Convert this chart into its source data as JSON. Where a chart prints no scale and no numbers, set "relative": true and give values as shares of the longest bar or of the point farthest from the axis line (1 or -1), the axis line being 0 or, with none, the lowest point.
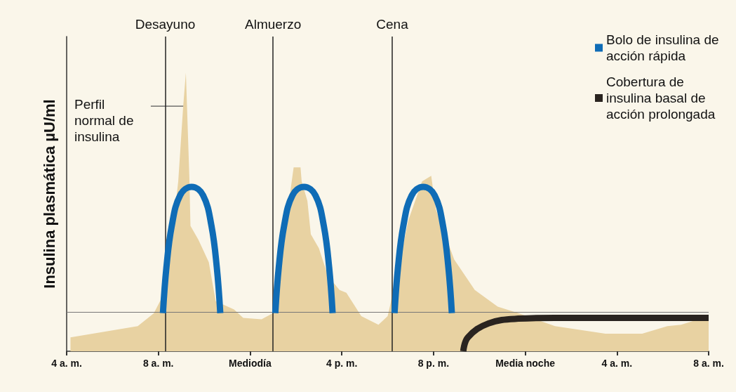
{
  "chart_data": {
    "type": "area",
    "relative": true,
    "ylabel": "Insulina plasmática µU/ml",
    "legend": "top right",
    "marker": "none",
    "xlim": [
      "--01-01T04:00",
      "--01-02T08:00"
    ],
    "xticks": [
      {
        "value": "--01-01T04:00",
        "label": "4 a. m."
      },
      {
        "value": "--01-01T08:00",
        "label": "8 a. m."
      },
      {
        "value": "--01-01T12:00",
        "label": "Mediodía"
      },
      {
        "value": "--01-01T16:00",
        "label": "4 p. m."
      },
      {
        "value": "--01-01T20:00",
        "label": "8 p. m."
      },
      {
        "value": "--01-02T00:00",
        "label": "Media noche"
      },
      {
        "value": "--01-02T04:00",
        "label": "4 a. m."
      },
      {
        "value": "--01-02T08:00",
        "label": "8 a. m."
      }
    ],
    "series": [
      {
        "type": "area",
        "color": "#e8d2a2",
        "x": [
          "--01-01T04:10",
          "--01-01T07:06",
          "--01-01T07:48",
          "--01-01T08:12",
          "--01-01T08:39",
          "--01-01T08:52",
          "--01-01T09:05",
          "--01-01T09:12",
          "--01-01T09:21",
          "--01-01T09:24",
          "--01-01T09:45",
          "--01-01T10:12",
          "--01-01T10:30",
          "--01-01T11:18",
          "--01-01T11:42",
          "--01-01T12:30",
          "--01-01T13:00",
          "--01-01T13:24",
          "--01-01T13:42",
          "--01-01T13:54",
          "--01-01T14:12",
          "--01-01T14:15",
          "--01-01T14:30",
          "--01-01T14:39",
          "--01-01T15:00",
          "--01-01T15:24",
          "--01-01T15:54",
          "--01-01T16:12",
          "--01-01T16:51",
          "--01-01T17:36",
          "--01-01T18:00",
          "--01-01T18:24",
          "--01-01T18:54",
          "--01-01T19:30",
          "--01-01T19:54",
          "--01-01T20:06",
          "--01-01T20:54",
          "--01-01T21:48",
          "--01-01T22:48",
          "--01-01T23:42",
          "--01-02T01:18",
          "--01-02T03:30",
          "--01-02T05:06",
          "--01-02T06:12",
          "--01-02T06:48",
          "--01-02T08:00"
        ],
        "values": [
          0.05,
          0.09,
          0.136,
          0.2,
          0.45,
          0.61,
          0.88,
          1.0,
          0.63,
          0.45,
          0.4,
          0.32,
          0.18,
          0.15,
          0.12,
          0.115,
          0.137,
          0.36,
          0.54,
          0.66,
          0.66,
          0.61,
          0.54,
          0.42,
          0.37,
          0.27,
          0.22,
          0.21,
          0.126,
          0.095,
          0.126,
          0.27,
          0.47,
          0.61,
          0.63,
          0.51,
          0.33,
          0.22,
          0.16,
          0.137,
          0.09,
          0.063,
          0.063,
          0.09,
          0.095,
          0.126
        ]
      },
      {
        "type": "line",
        "name": "Bolo de insulina de acción rápida",
        "color": "#0f6cb6",
        "x": [
          "--01-01T08:12",
          "--01-01T08:21",
          "--01-01T08:35",
          "--01-01T08:57",
          "--01-01T09:27",
          "--01-01T09:57",
          "--01-01T10:19",
          "--01-01T10:33",
          "--01-01T10:42",
          "--01-01T11:54",
          "--01-01T13:06",
          "--01-01T13:15",
          "--01-01T13:29",
          "--01-01T13:51",
          "--01-01T14:21",
          "--01-01T14:51",
          "--01-01T15:13",
          "--01-01T15:27",
          "--01-01T15:36",
          "--01-01T16:54",
          "--01-01T18:18",
          "--01-01T18:27",
          "--01-01T18:41",
          "--01-01T19:03",
          "--01-01T19:33",
          "--01-01T20:03",
          "--01-01T20:25",
          "--01-01T20:39",
          "--01-01T20:48"
        ],
        "values": [
          0.137,
          0.3,
          0.45,
          0.56,
          0.59,
          0.56,
          0.45,
          0.3,
          0.137,
          null,
          0.137,
          0.3,
          0.45,
          0.56,
          0.59,
          0.56,
          0.45,
          0.3,
          0.137,
          null,
          0.137,
          0.3,
          0.45,
          0.56,
          0.59,
          0.56,
          0.45,
          0.3,
          0.137
        ]
      },
      {
        "type": "line",
        "name": "Cobertura de insulina basal de acción prolongada",
        "color": "#2a2420",
        "x": [
          "--01-01T21:18",
          "--01-01T21:30",
          "--01-01T22:24",
          "--01-01T23:42",
          "--01-02T01:18",
          "--01-02T08:00"
        ],
        "values": [
          0,
          0.05,
          0.1,
          0.117,
          0.12,
          0.12
        ]
      }
    ],
    "ref_lines": [
      {
        "axis": "x",
        "value": "--01-01T08:18",
        "label": "Desayuno",
        "color": "#222222"
      },
      {
        "axis": "x",
        "value": "--01-01T13:00",
        "label": "Almuerzo",
        "color": "#222222"
      },
      {
        "axis": "x",
        "value": "--01-01T18:12",
        "label": "Cena",
        "color": "#222222"
      },
      {
        "axis": "y",
        "value": 0.137,
        "color": "#777777"
      }
    ],
    "annotations": [
      {
        "text": "Perfil normal de insulina",
        "x": "--01-01T09:12",
        "y": 0.88
      }
    ]
  }
}
